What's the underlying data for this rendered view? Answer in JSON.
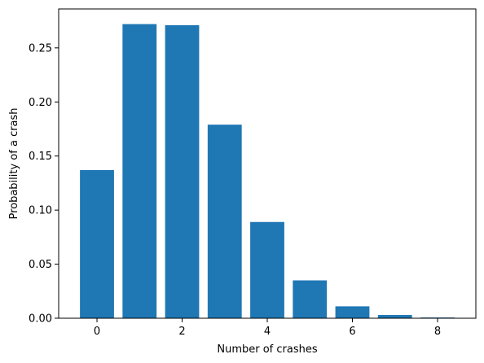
{
  "chart_data": {
    "type": "bar",
    "title": "",
    "xlabel": "Number of crashes",
    "ylabel": "Probability of a crash",
    "categories": [
      0,
      1,
      2,
      3,
      4,
      5,
      6,
      7,
      8
    ],
    "values": [
      0.137,
      0.272,
      0.271,
      0.179,
      0.089,
      0.035,
      0.011,
      0.003,
      0.0007
    ],
    "xlim": [
      -0.9,
      8.9
    ],
    "ylim": [
      0,
      0.286
    ],
    "x_ticks": [
      0,
      2,
      4,
      6,
      8
    ],
    "x_tick_labels": [
      "0",
      "2",
      "4",
      "6",
      "8"
    ],
    "y_ticks": [
      0.0,
      0.05,
      0.1,
      0.15,
      0.2,
      0.25
    ],
    "y_tick_labels": [
      "0.00",
      "0.05",
      "0.10",
      "0.15",
      "0.20",
      "0.25"
    ],
    "bar_color": "#1f77b4",
    "grid": false,
    "legend": "none"
  }
}
